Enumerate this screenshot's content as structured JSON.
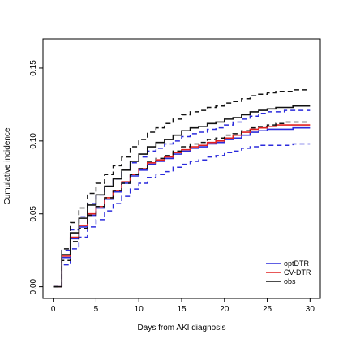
{
  "chart_data": {
    "type": "line",
    "title": "",
    "xlabel": "Days from AKI diagnosis",
    "ylabel": "Cumulative incidence",
    "xlim": [
      0,
      30
    ],
    "ylim": [
      0,
      0.17
    ],
    "x_ticks": [
      "0",
      "5",
      "10",
      "15",
      "20",
      "25",
      "30"
    ],
    "y_ticks": [
      "0.00",
      "0.05",
      "0.10",
      "0.15"
    ],
    "grid": false,
    "legend_position": "bottom-right",
    "step_days": [
      0,
      1,
      2,
      3,
      4,
      5,
      6,
      7,
      8,
      9,
      10,
      11,
      12,
      13,
      14,
      15,
      16,
      17,
      18,
      19,
      20,
      21,
      22,
      23,
      24,
      25,
      26,
      27,
      28,
      29,
      30
    ],
    "series": [
      {
        "name": "optDTR",
        "color": "#2b2bdc",
        "values": [
          0.0,
          0.02,
          0.033,
          0.041,
          0.049,
          0.054,
          0.06,
          0.065,
          0.071,
          0.076,
          0.08,
          0.084,
          0.086,
          0.088,
          0.091,
          0.093,
          0.095,
          0.096,
          0.098,
          0.099,
          0.101,
          0.102,
          0.104,
          0.106,
          0.107,
          0.108,
          0.108,
          0.108,
          0.109,
          0.109,
          0.109
        ],
        "lower": [
          0.0,
          0.015,
          0.026,
          0.034,
          0.041,
          0.046,
          0.052,
          0.057,
          0.062,
          0.067,
          0.071,
          0.075,
          0.077,
          0.079,
          0.082,
          0.084,
          0.086,
          0.087,
          0.089,
          0.09,
          0.092,
          0.093,
          0.095,
          0.096,
          0.097,
          0.097,
          0.097,
          0.097,
          0.098,
          0.098,
          0.098
        ],
        "upper": [
          0.0,
          0.025,
          0.039,
          0.048,
          0.057,
          0.063,
          0.069,
          0.074,
          0.08,
          0.085,
          0.089,
          0.093,
          0.095,
          0.098,
          0.1,
          0.103,
          0.105,
          0.106,
          0.108,
          0.109,
          0.111,
          0.113,
          0.115,
          0.117,
          0.119,
          0.12,
          0.12,
          0.121,
          0.121,
          0.121,
          0.121
        ]
      },
      {
        "name": "CV-DTR",
        "color": "#e02020",
        "values": [
          0.0,
          0.021,
          0.034,
          0.042,
          0.05,
          0.055,
          0.061,
          0.066,
          0.072,
          0.077,
          0.081,
          0.085,
          0.087,
          0.089,
          0.092,
          0.094,
          0.096,
          0.097,
          0.099,
          0.1,
          0.102,
          0.104,
          0.106,
          0.108,
          0.109,
          0.11,
          0.111,
          0.111,
          0.111,
          0.111,
          0.111
        ]
      },
      {
        "name": "obs",
        "color": "#111111",
        "values": [
          0.0,
          0.022,
          0.037,
          0.047,
          0.056,
          0.063,
          0.069,
          0.074,
          0.08,
          0.086,
          0.091,
          0.096,
          0.099,
          0.101,
          0.104,
          0.107,
          0.109,
          0.11,
          0.112,
          0.113,
          0.115,
          0.116,
          0.118,
          0.12,
          0.121,
          0.122,
          0.123,
          0.123,
          0.124,
          0.124,
          0.124
        ],
        "lower": [
          0.0,
          0.018,
          0.031,
          0.04,
          0.049,
          0.055,
          0.061,
          0.066,
          0.071,
          0.077,
          0.081,
          0.086,
          0.088,
          0.09,
          0.093,
          0.096,
          0.098,
          0.099,
          0.101,
          0.102,
          0.104,
          0.105,
          0.107,
          0.109,
          0.11,
          0.111,
          0.112,
          0.113,
          0.113,
          0.113,
          0.113
        ],
        "upper": [
          0.0,
          0.026,
          0.044,
          0.054,
          0.064,
          0.071,
          0.077,
          0.083,
          0.089,
          0.096,
          0.101,
          0.106,
          0.109,
          0.112,
          0.115,
          0.118,
          0.12,
          0.121,
          0.123,
          0.124,
          0.126,
          0.127,
          0.129,
          0.131,
          0.132,
          0.133,
          0.134,
          0.134,
          0.135,
          0.135,
          0.135
        ]
      }
    ]
  }
}
